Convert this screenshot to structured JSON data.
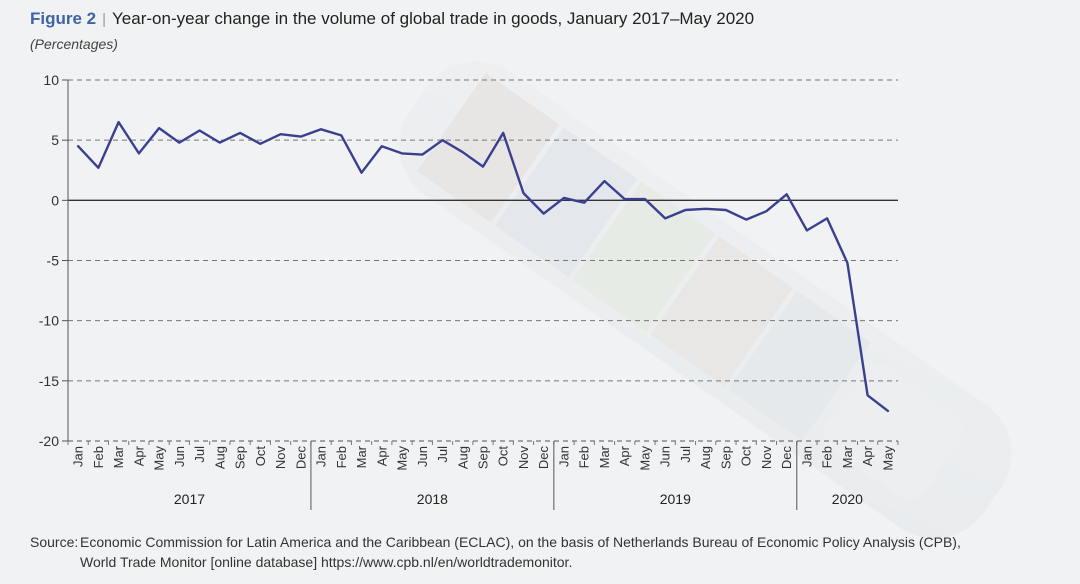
{
  "header": {
    "figure_label": "Figure 2",
    "separator": "|",
    "title": "Year-on-year change in the volume of global trade in goods, January 2017–May 2020",
    "subtitle": "(Percentages)"
  },
  "source": {
    "label": "Source:",
    "line1": "Economic Commission for Latin America and the Caribbean (ECLAC), on the basis of Netherlands Bureau of Economic Policy Analysis (CPB),",
    "line2": "World Trade Monitor [online database] https://www.cpb.nl/en/worldtrademonitor."
  },
  "colors": {
    "line": "#3a3f8f",
    "zero_line": "#333333",
    "grid": "#777777",
    "accent": "#3f63a8"
  },
  "chart_data": {
    "type": "line",
    "ylim": [
      -20,
      10
    ],
    "yticks": [
      10,
      5,
      0,
      -5,
      -10,
      -15,
      -20
    ],
    "grid": "horizontal dashed",
    "years": [
      {
        "label": "2017",
        "months": 12
      },
      {
        "label": "2018",
        "months": 12
      },
      {
        "label": "2019",
        "months": 12
      },
      {
        "label": "2020",
        "months": 5
      }
    ],
    "categories": [
      "Jan",
      "Feb",
      "Mar",
      "Apr",
      "May",
      "Jun",
      "Jul",
      "Aug",
      "Sep",
      "Oct",
      "Nov",
      "Dec",
      "Jan",
      "Feb",
      "Mar",
      "Apr",
      "May",
      "Jun",
      "Jul",
      "Aug",
      "Sep",
      "Oct",
      "Nov",
      "Dec",
      "Jan",
      "Feb",
      "Mar",
      "Apr",
      "May",
      "Jun",
      "Jul",
      "Aug",
      "Sep",
      "Oct",
      "Nov",
      "Dec",
      "Jan",
      "Feb",
      "Mar",
      "Apr",
      "May"
    ],
    "series": [
      {
        "values": [
          4.5,
          2.7,
          6.5,
          3.9,
          6.0,
          4.8,
          5.8,
          4.8,
          5.6,
          4.7,
          5.5,
          5.3,
          5.9,
          5.4,
          2.3,
          4.5,
          3.9,
          3.8,
          5.0,
          4.0,
          2.8,
          5.6,
          0.6,
          -1.1,
          0.2,
          -0.2,
          1.6,
          0.1,
          0.1,
          -1.5,
          -0.8,
          -0.7,
          -0.8,
          -1.6,
          -0.9,
          0.5,
          -2.5,
          -1.5,
          -5.2,
          -16.2,
          -17.5
        ]
      }
    ]
  }
}
